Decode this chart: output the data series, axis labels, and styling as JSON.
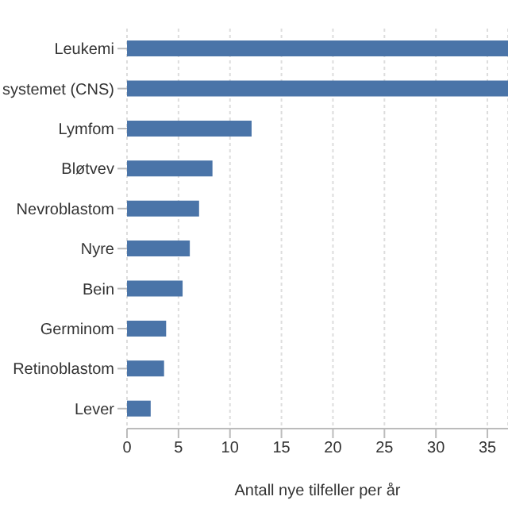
{
  "chart_data": {
    "type": "bar",
    "orientation": "horizontal",
    "xlabel": "Antall nye tilfeller per år",
    "categories": [
      "Leukemi",
      "systemet (CNS)",
      "Lymfom",
      "Bløtvev",
      "Nevroblastom",
      "Nyre",
      "Bein",
      "Germinom",
      "Retinoblastom",
      "Lever"
    ],
    "values": [
      37,
      37,
      12.1,
      8.3,
      7.0,
      6.1,
      5.4,
      3.8,
      3.6,
      2.3
    ],
    "color": "#4a74a8",
    "xlim": [
      0,
      37
    ],
    "xticks": [
      0,
      5,
      10,
      15,
      20,
      25,
      30,
      35
    ],
    "grid": "x"
  }
}
